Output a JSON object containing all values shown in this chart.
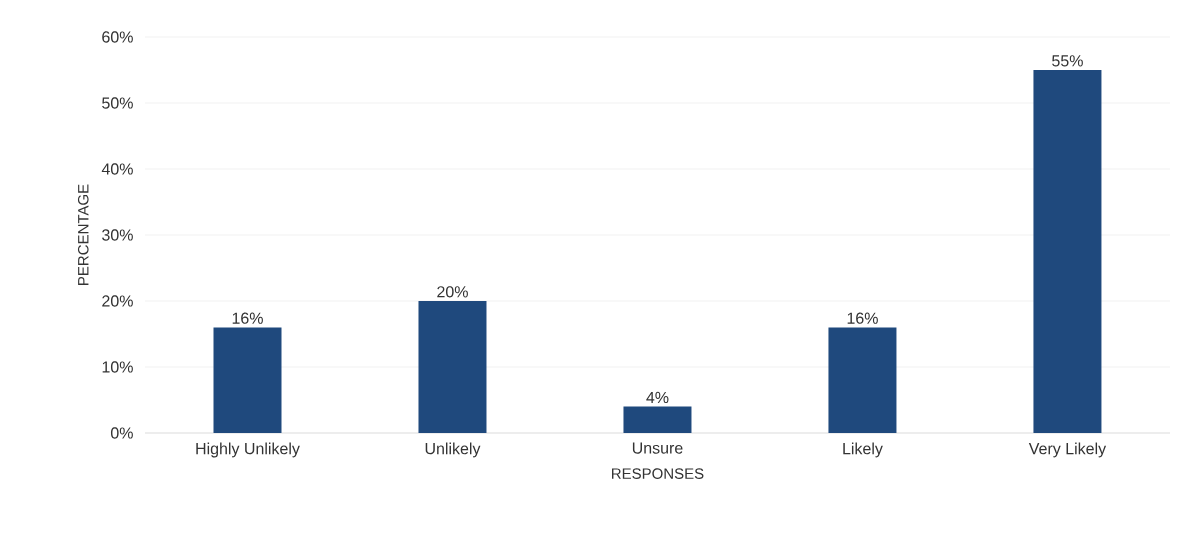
{
  "chart_data": {
    "type": "bar",
    "xlabel": "RESPONSES",
    "ylabel": "PERCENTAGE",
    "categories": [
      "Highly Unlikely",
      "Unlikely",
      "Unsure",
      "Likely",
      "Very Likely"
    ],
    "values": [
      16,
      20,
      4,
      16,
      55
    ],
    "value_labels": [
      "16%",
      "20%",
      "4%",
      "16%",
      "55%"
    ],
    "color": "#1f497d",
    "ylim": [
      0,
      60
    ],
    "yticks": [
      {
        "value": 0,
        "label": "0%"
      },
      {
        "value": 10,
        "label": "10%"
      },
      {
        "value": 20,
        "label": "20%"
      },
      {
        "value": 30,
        "label": "30%"
      },
      {
        "value": 40,
        "label": "40%"
      },
      {
        "value": 50,
        "label": "50%"
      },
      {
        "value": 60,
        "label": "60%"
      }
    ],
    "grid": "y"
  }
}
